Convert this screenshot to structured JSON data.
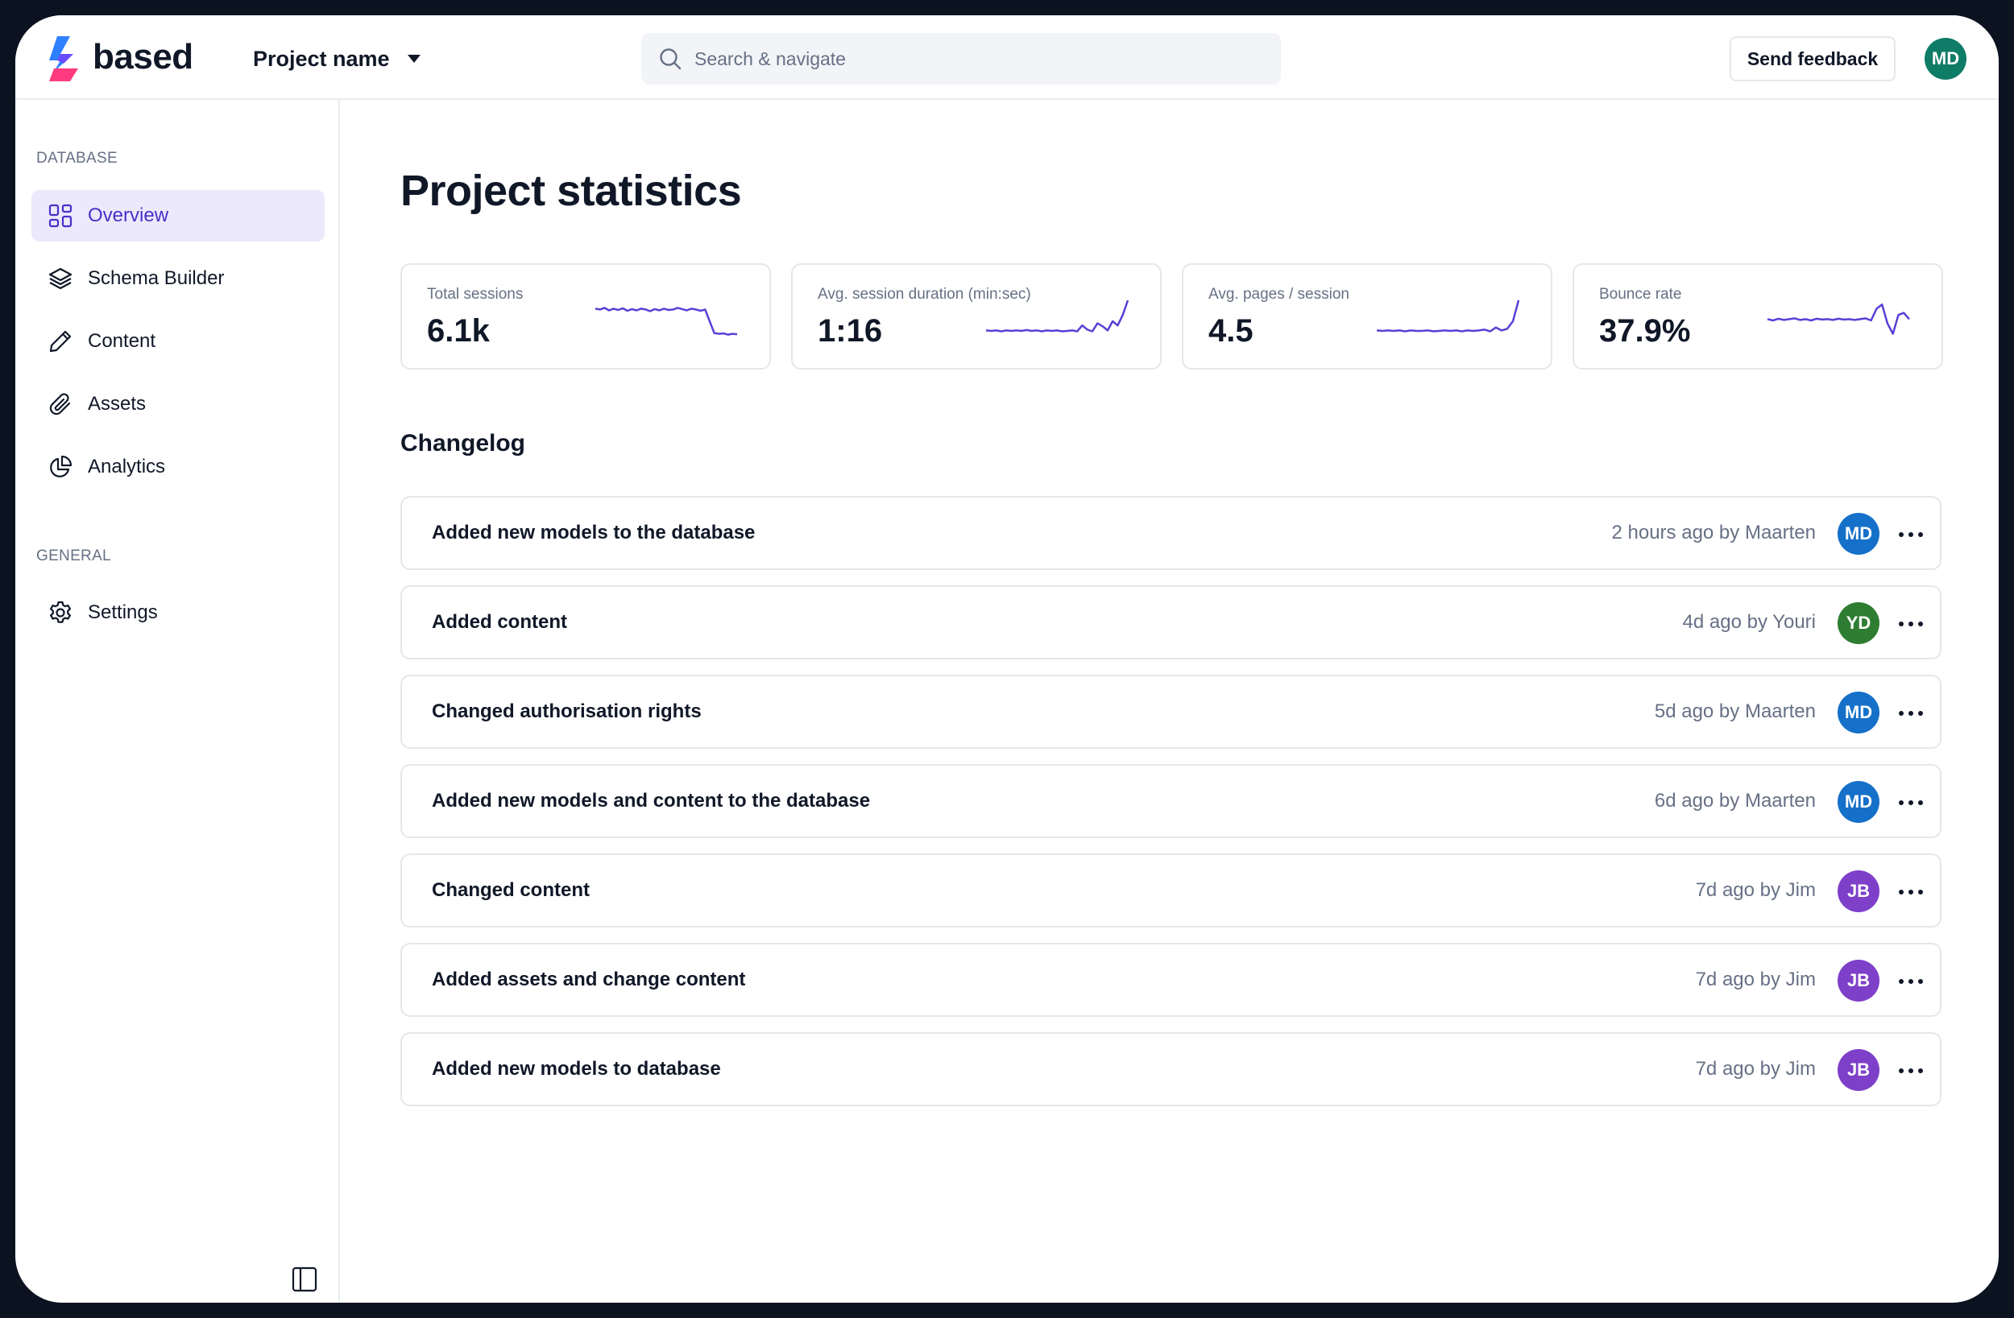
{
  "brand": {
    "name": "based"
  },
  "header": {
    "project_label": "Project name",
    "search_placeholder": "Search & navigate",
    "feedback_label": "Send feedback",
    "user_initials": "MD"
  },
  "sidebar": {
    "database_title": "DATABASE",
    "general_title": "GENERAL",
    "items": [
      {
        "label": "Overview",
        "icon": "grid-icon",
        "active": true
      },
      {
        "label": "Schema Builder",
        "icon": "layers-icon",
        "active": false
      },
      {
        "label": "Content",
        "icon": "pencil-icon",
        "active": false
      },
      {
        "label": "Assets",
        "icon": "paperclip-icon",
        "active": false
      },
      {
        "label": "Analytics",
        "icon": "pie-chart-icon",
        "active": false
      },
      {
        "label": "Settings",
        "icon": "gear-icon",
        "active": false
      }
    ]
  },
  "main": {
    "title": "Project statistics",
    "stats": [
      {
        "label": "Total sessions",
        "value": "6.1k",
        "trend": [
          0.2,
          0.22,
          0.18,
          0.24,
          0.2,
          0.23,
          0.19,
          0.25,
          0.21,
          0.24,
          0.2,
          0.22,
          0.26,
          0.21,
          0.24,
          0.2,
          0.23,
          0.22,
          0.18,
          0.21,
          0.24,
          0.2,
          0.22,
          0.25,
          0.22,
          0.5,
          0.78,
          0.8,
          0.79,
          0.82,
          0.8,
          0.81
        ]
      },
      {
        "label": "Avg. session duration (min:sec)",
        "value": "1:16",
        "trend": [
          0.72,
          0.73,
          0.72,
          0.74,
          0.72,
          0.73,
          0.72,
          0.73,
          0.71,
          0.73,
          0.72,
          0.74,
          0.72,
          0.73,
          0.72,
          0.74,
          0.73,
          0.72,
          0.74,
          0.6,
          0.7,
          0.74,
          0.55,
          0.62,
          0.72,
          0.5,
          0.6,
          0.35,
          0.0
        ]
      },
      {
        "label": "Avg. pages / session",
        "value": "4.5",
        "trend": [
          0.72,
          0.73,
          0.72,
          0.73,
          0.72,
          0.74,
          0.72,
          0.73,
          0.73,
          0.72,
          0.74,
          0.73,
          0.72,
          0.73,
          0.72,
          0.74,
          0.72,
          0.73,
          0.72,
          0.7,
          0.74,
          0.65,
          0.72,
          0.68,
          0.5,
          0.0
        ]
      },
      {
        "label": "Bounce rate",
        "value": "37.9%",
        "trend": [
          0.45,
          0.48,
          0.44,
          0.47,
          0.45,
          0.43,
          0.47,
          0.45,
          0.48,
          0.44,
          0.46,
          0.45,
          0.47,
          0.44,
          0.46,
          0.45,
          0.47,
          0.45,
          0.43,
          0.48,
          0.2,
          0.1,
          0.55,
          0.8,
          0.35,
          0.3,
          0.45
        ]
      }
    ],
    "changelog_title": "Changelog",
    "changelog": [
      {
        "title": "Added new models to the database",
        "meta": "2 hours ago by Maarten",
        "initials": "MD",
        "color": "#1570c9"
      },
      {
        "title": "Added content",
        "meta": "4d ago by Youri",
        "initials": "YD",
        "color": "#2f7d32"
      },
      {
        "title": "Changed authorisation rights",
        "meta": "5d ago by Maarten",
        "initials": "MD",
        "color": "#1570c9"
      },
      {
        "title": "Added new models and content to the database",
        "meta": "6d ago by Maarten",
        "initials": "MD",
        "color": "#1570c9"
      },
      {
        "title": "Changed content",
        "meta": "7d ago by Jim",
        "initials": "JB",
        "color": "#7e3fc9"
      },
      {
        "title": "Added assets and change content",
        "meta": "7d ago by Jim",
        "initials": "JB",
        "color": "#7e3fc9"
      },
      {
        "title": "Added new models to database",
        "meta": "7d ago by Jim",
        "initials": "JB",
        "color": "#7e3fc9"
      }
    ]
  },
  "colors": {
    "accent": "#4b2fc9",
    "active_bg": "#ebe9fb",
    "sparkline": "#5b3fd6"
  }
}
